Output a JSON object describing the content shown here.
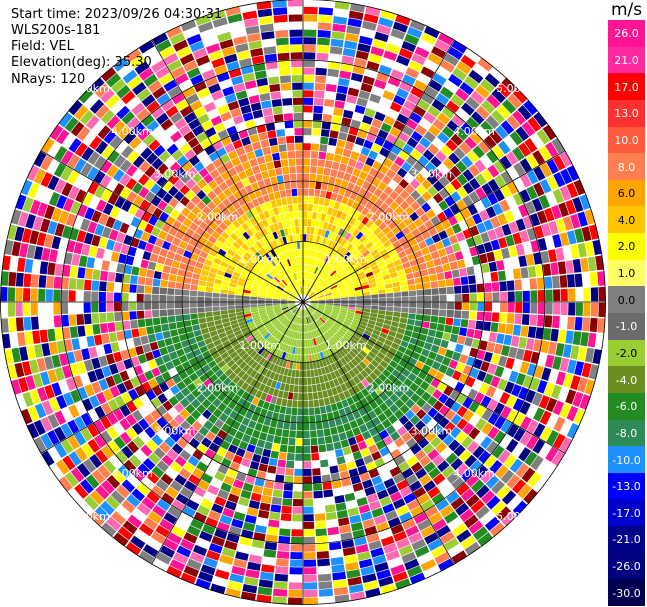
{
  "header": {
    "start_time": "Start time: 2023/09/26 04:30:31",
    "instrument": "WLS200s-181",
    "field": "Field: VEL",
    "elevation": "Elevation(deg): 35.30",
    "nrays": "NRays: 120"
  },
  "colorbar": {
    "unit": "m/s",
    "ticks": [
      "26.0",
      "21.0",
      "17.0",
      "13.0",
      "10.0",
      "8.0",
      "6.0",
      "4.0",
      "2.0",
      "1.0",
      "0.0",
      "-1.0",
      "-2.0",
      "-4.0",
      "-6.0",
      "-8.0",
      "-10.0",
      "-13.0",
      "-17.0",
      "-21.0",
      "-26.0",
      "-30.0"
    ],
    "colors": [
      "#ff1493",
      "#ff2aa0",
      "#ff0000",
      "#ff3030",
      "#ff5a3c",
      "#ff7f50",
      "#ffa500",
      "#ffc400",
      "#ffff00",
      "#ffff66",
      "#808080",
      "#6b6b6b",
      "#9acd32",
      "#6b8e23",
      "#228b22",
      "#2e8b57",
      "#1e90ff",
      "#0000ff",
      "#0000cd",
      "#00008b",
      "#000080",
      "#000050"
    ]
  },
  "chart_data": {
    "type": "heatmap",
    "projection": "PPI (plan position indicator)",
    "field": "VEL",
    "units": "m/s",
    "nrays": 120,
    "range_rings_km": [
      1.0,
      2.0,
      3.0,
      4.0,
      5.0
    ],
    "ring_labels": [
      "1.00km",
      "2.00km",
      "3.00km",
      "4.00km",
      "5.00km"
    ],
    "value_range": [
      -30.0,
      26.0
    ],
    "pattern": {
      "north_sector": "positive velocities (2 to 8 m/s, yellow to salmon)",
      "south_sector": "negative velocities (-4 to -8 m/s, green)",
      "near_zero_band": "east-west (gray)",
      "outer_ranges": "noisy / random values beyond ~2.5 km"
    }
  }
}
